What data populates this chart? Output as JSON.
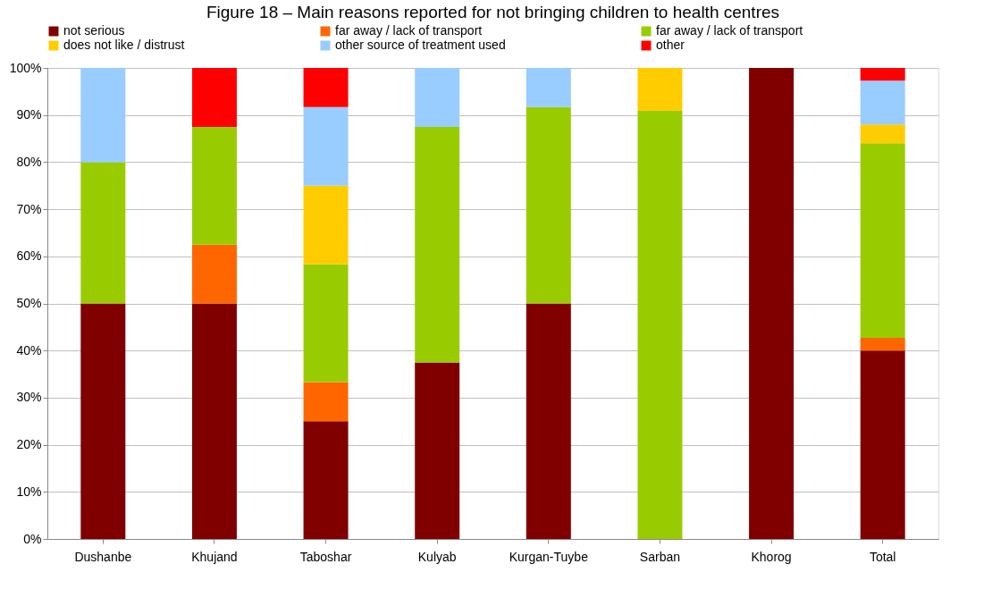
{
  "chart_data": {
    "type": "bar",
    "stacked": true,
    "title": "Figure 18 – Main reasons reported for not bringing children to health centres",
    "categories": [
      "Dushanbe",
      "Khujand",
      "Taboshar",
      "Kulyab",
      "Kurgan-Tuybe",
      "Sarban",
      "Khorog",
      "Total"
    ],
    "series": [
      {
        "name": "not serious",
        "color": "#800000",
        "values": [
          50,
          50,
          25,
          37.5,
          50,
          null,
          100,
          40
        ]
      },
      {
        "name": "far away / lack of transport",
        "color": "#ff6600",
        "values": [
          null,
          12.5,
          8.3,
          null,
          null,
          null,
          null,
          2.7
        ]
      },
      {
        "name": "far away / lack of transport",
        "color": "#99cc00",
        "values": [
          30,
          25,
          25,
          50,
          41.7,
          90.9,
          null,
          41.3
        ]
      },
      {
        "name": "does not like / distrust",
        "color": "#ffcc00",
        "values": [
          null,
          null,
          16.7,
          null,
          null,
          9.1,
          null,
          4
        ]
      },
      {
        "name": "other source of treatment used",
        "color": "#99ccff",
        "values": [
          20,
          null,
          16.7,
          12.5,
          8.3,
          null,
          null,
          9.3
        ]
      },
      {
        "name": "other",
        "color": "#ff0000",
        "values": [
          null,
          12.5,
          8.3,
          null,
          null,
          null,
          null,
          2.7
        ]
      }
    ],
    "ylim": [
      0,
      100
    ],
    "yticks": [
      {
        "value": 0,
        "label": "0%"
      },
      {
        "value": 10,
        "label": "10%"
      },
      {
        "value": 20,
        "label": "20%"
      },
      {
        "value": 30,
        "label": "30%"
      },
      {
        "value": 40,
        "label": "40%"
      },
      {
        "value": 50,
        "label": "50%"
      },
      {
        "value": 60,
        "label": "60%"
      },
      {
        "value": 70,
        "label": "70%"
      },
      {
        "value": 80,
        "label": "80%"
      },
      {
        "value": 90,
        "label": "90%"
      },
      {
        "value": 100,
        "label": "100%"
      }
    ],
    "grid": "y",
    "legend": "top"
  }
}
